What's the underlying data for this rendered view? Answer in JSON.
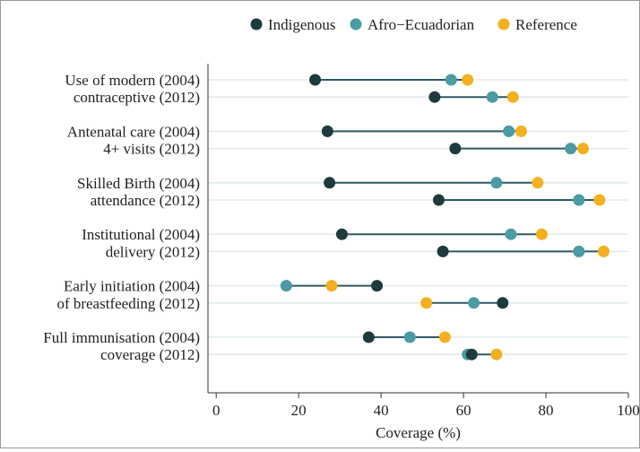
{
  "chart_data": {
    "type": "dumbbell",
    "title": "",
    "xlabel": "Coverage (%)",
    "ylabel": "",
    "xlim": [
      -2,
      100
    ],
    "xticks": [
      0,
      20,
      40,
      60,
      80,
      100
    ],
    "grid": true,
    "legend_position": "top",
    "series": [
      {
        "name": "Indigenous",
        "color": "#1f3a3d"
      },
      {
        "name": "Afro−Ecuadorian",
        "color": "#4a9ba3"
      },
      {
        "name": "Reference",
        "color": "#f3b01f"
      }
    ],
    "categories": [
      {
        "line1": "Use of modern (2004)",
        "line2": "contraceptive (2012)"
      },
      {
        "line1": "Antenatal care (2004)",
        "line2": "4+ visits (2012)"
      },
      {
        "line1": "Skilled Birth (2004)",
        "line2": "attendance (2012)"
      },
      {
        "line1": "Institutional (2004)",
        "line2": "delivery (2012)"
      },
      {
        "line1": "Early initiation (2004)",
        "line2": "of breastfeeding (2012)"
      },
      {
        "line1": "Full immunisation (2004)",
        "line2": "coverage (2012)"
      }
    ],
    "rows": [
      {
        "indicator": "Use of modern contraceptive",
        "year": "2004",
        "indigenous": 24,
        "afro": 57,
        "reference": 61
      },
      {
        "indicator": "Use of modern contraceptive",
        "year": "2012",
        "indigenous": 53,
        "afro": 67,
        "reference": 72
      },
      {
        "indicator": "Antenatal care 4+ visits",
        "year": "2004",
        "indigenous": 27,
        "afro": 71,
        "reference": 74
      },
      {
        "indicator": "Antenatal care 4+ visits",
        "year": "2012",
        "indigenous": 58,
        "afro": 86,
        "reference": 89
      },
      {
        "indicator": "Skilled Birth attendance",
        "year": "2004",
        "indigenous": 27.5,
        "afro": 68,
        "reference": 78
      },
      {
        "indicator": "Skilled Birth attendance",
        "year": "2012",
        "indigenous": 54,
        "afro": 88,
        "reference": 93
      },
      {
        "indicator": "Institutional delivery",
        "year": "2004",
        "indigenous": 30.5,
        "afro": 71.5,
        "reference": 79
      },
      {
        "indicator": "Institutional delivery",
        "year": "2012",
        "indigenous": 55,
        "afro": 88,
        "reference": 94
      },
      {
        "indicator": "Early initiation of breastfeeding",
        "year": "2004",
        "indigenous": 39,
        "afro": 17,
        "reference": 28
      },
      {
        "indicator": "Early initiation of breastfeeding",
        "year": "2012",
        "indigenous": 69.5,
        "afro": 62.5,
        "reference": 51
      },
      {
        "indicator": "Full immunisation coverage",
        "year": "2004",
        "indigenous": 37,
        "afro": 47,
        "reference": 55.5
      },
      {
        "indicator": "Full immunisation coverage",
        "year": "2012",
        "indigenous": 62,
        "afro": 61,
        "reference": 68
      }
    ]
  }
}
